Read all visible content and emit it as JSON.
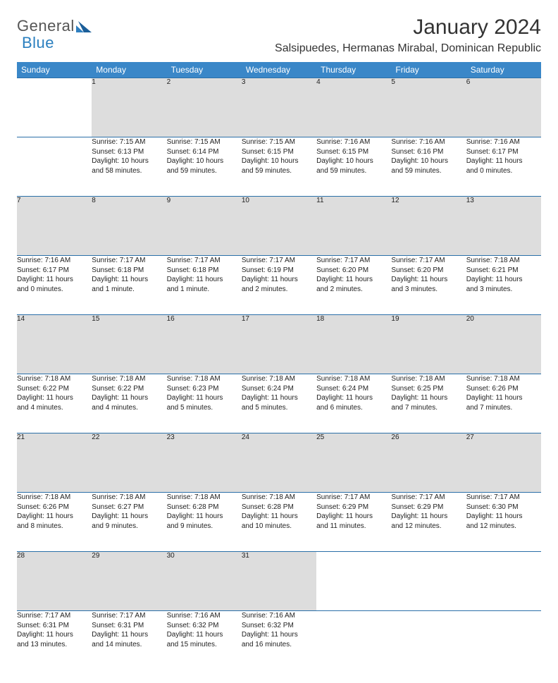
{
  "brand": {
    "text1": "General",
    "text2": "Blue"
  },
  "title": "January 2024",
  "location": "Salsipuedes, Hermanas Mirabal, Dominican Republic",
  "header_bg": "#3a87c8",
  "daynum_bg": "#dddddd",
  "border_color": "#2a6fa8",
  "days_of_week": [
    "Sunday",
    "Monday",
    "Tuesday",
    "Wednesday",
    "Thursday",
    "Friday",
    "Saturday"
  ],
  "weeks": [
    {
      "nums": [
        "",
        "1",
        "2",
        "3",
        "4",
        "5",
        "6"
      ],
      "cells": [
        null,
        {
          "sr": "Sunrise: 7:15 AM",
          "ss": "Sunset: 6:13 PM",
          "d1": "Daylight: 10 hours",
          "d2": "and 58 minutes."
        },
        {
          "sr": "Sunrise: 7:15 AM",
          "ss": "Sunset: 6:14 PM",
          "d1": "Daylight: 10 hours",
          "d2": "and 59 minutes."
        },
        {
          "sr": "Sunrise: 7:15 AM",
          "ss": "Sunset: 6:15 PM",
          "d1": "Daylight: 10 hours",
          "d2": "and 59 minutes."
        },
        {
          "sr": "Sunrise: 7:16 AM",
          "ss": "Sunset: 6:15 PM",
          "d1": "Daylight: 10 hours",
          "d2": "and 59 minutes."
        },
        {
          "sr": "Sunrise: 7:16 AM",
          "ss": "Sunset: 6:16 PM",
          "d1": "Daylight: 10 hours",
          "d2": "and 59 minutes."
        },
        {
          "sr": "Sunrise: 7:16 AM",
          "ss": "Sunset: 6:17 PM",
          "d1": "Daylight: 11 hours",
          "d2": "and 0 minutes."
        }
      ]
    },
    {
      "nums": [
        "7",
        "8",
        "9",
        "10",
        "11",
        "12",
        "13"
      ],
      "cells": [
        {
          "sr": "Sunrise: 7:16 AM",
          "ss": "Sunset: 6:17 PM",
          "d1": "Daylight: 11 hours",
          "d2": "and 0 minutes."
        },
        {
          "sr": "Sunrise: 7:17 AM",
          "ss": "Sunset: 6:18 PM",
          "d1": "Daylight: 11 hours",
          "d2": "and 1 minute."
        },
        {
          "sr": "Sunrise: 7:17 AM",
          "ss": "Sunset: 6:18 PM",
          "d1": "Daylight: 11 hours",
          "d2": "and 1 minute."
        },
        {
          "sr": "Sunrise: 7:17 AM",
          "ss": "Sunset: 6:19 PM",
          "d1": "Daylight: 11 hours",
          "d2": "and 2 minutes."
        },
        {
          "sr": "Sunrise: 7:17 AM",
          "ss": "Sunset: 6:20 PM",
          "d1": "Daylight: 11 hours",
          "d2": "and 2 minutes."
        },
        {
          "sr": "Sunrise: 7:17 AM",
          "ss": "Sunset: 6:20 PM",
          "d1": "Daylight: 11 hours",
          "d2": "and 3 minutes."
        },
        {
          "sr": "Sunrise: 7:18 AM",
          "ss": "Sunset: 6:21 PM",
          "d1": "Daylight: 11 hours",
          "d2": "and 3 minutes."
        }
      ]
    },
    {
      "nums": [
        "14",
        "15",
        "16",
        "17",
        "18",
        "19",
        "20"
      ],
      "cells": [
        {
          "sr": "Sunrise: 7:18 AM",
          "ss": "Sunset: 6:22 PM",
          "d1": "Daylight: 11 hours",
          "d2": "and 4 minutes."
        },
        {
          "sr": "Sunrise: 7:18 AM",
          "ss": "Sunset: 6:22 PM",
          "d1": "Daylight: 11 hours",
          "d2": "and 4 minutes."
        },
        {
          "sr": "Sunrise: 7:18 AM",
          "ss": "Sunset: 6:23 PM",
          "d1": "Daylight: 11 hours",
          "d2": "and 5 minutes."
        },
        {
          "sr": "Sunrise: 7:18 AM",
          "ss": "Sunset: 6:24 PM",
          "d1": "Daylight: 11 hours",
          "d2": "and 5 minutes."
        },
        {
          "sr": "Sunrise: 7:18 AM",
          "ss": "Sunset: 6:24 PM",
          "d1": "Daylight: 11 hours",
          "d2": "and 6 minutes."
        },
        {
          "sr": "Sunrise: 7:18 AM",
          "ss": "Sunset: 6:25 PM",
          "d1": "Daylight: 11 hours",
          "d2": "and 7 minutes."
        },
        {
          "sr": "Sunrise: 7:18 AM",
          "ss": "Sunset: 6:26 PM",
          "d1": "Daylight: 11 hours",
          "d2": "and 7 minutes."
        }
      ]
    },
    {
      "nums": [
        "21",
        "22",
        "23",
        "24",
        "25",
        "26",
        "27"
      ],
      "cells": [
        {
          "sr": "Sunrise: 7:18 AM",
          "ss": "Sunset: 6:26 PM",
          "d1": "Daylight: 11 hours",
          "d2": "and 8 minutes."
        },
        {
          "sr": "Sunrise: 7:18 AM",
          "ss": "Sunset: 6:27 PM",
          "d1": "Daylight: 11 hours",
          "d2": "and 9 minutes."
        },
        {
          "sr": "Sunrise: 7:18 AM",
          "ss": "Sunset: 6:28 PM",
          "d1": "Daylight: 11 hours",
          "d2": "and 9 minutes."
        },
        {
          "sr": "Sunrise: 7:18 AM",
          "ss": "Sunset: 6:28 PM",
          "d1": "Daylight: 11 hours",
          "d2": "and 10 minutes."
        },
        {
          "sr": "Sunrise: 7:17 AM",
          "ss": "Sunset: 6:29 PM",
          "d1": "Daylight: 11 hours",
          "d2": "and 11 minutes."
        },
        {
          "sr": "Sunrise: 7:17 AM",
          "ss": "Sunset: 6:29 PM",
          "d1": "Daylight: 11 hours",
          "d2": "and 12 minutes."
        },
        {
          "sr": "Sunrise: 7:17 AM",
          "ss": "Sunset: 6:30 PM",
          "d1": "Daylight: 11 hours",
          "d2": "and 12 minutes."
        }
      ]
    },
    {
      "nums": [
        "28",
        "29",
        "30",
        "31",
        "",
        "",
        ""
      ],
      "cells": [
        {
          "sr": "Sunrise: 7:17 AM",
          "ss": "Sunset: 6:31 PM",
          "d1": "Daylight: 11 hours",
          "d2": "and 13 minutes."
        },
        {
          "sr": "Sunrise: 7:17 AM",
          "ss": "Sunset: 6:31 PM",
          "d1": "Daylight: 11 hours",
          "d2": "and 14 minutes."
        },
        {
          "sr": "Sunrise: 7:16 AM",
          "ss": "Sunset: 6:32 PM",
          "d1": "Daylight: 11 hours",
          "d2": "and 15 minutes."
        },
        {
          "sr": "Sunrise: 7:16 AM",
          "ss": "Sunset: 6:32 PM",
          "d1": "Daylight: 11 hours",
          "d2": "and 16 minutes."
        },
        null,
        null,
        null
      ]
    }
  ]
}
